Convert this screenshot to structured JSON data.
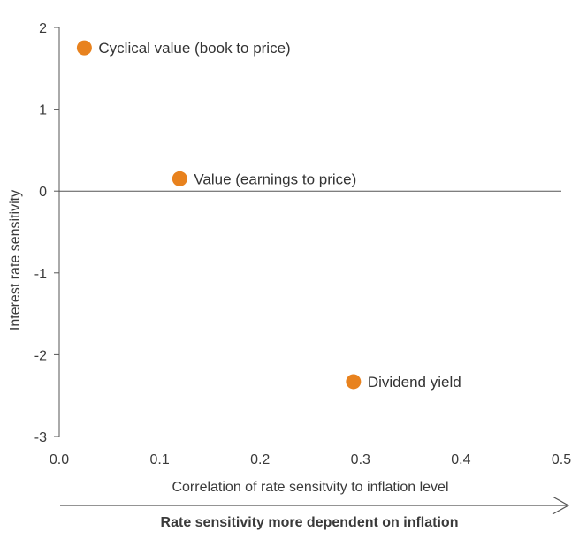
{
  "chart_data": {
    "type": "scatter",
    "xlabel": "Correlation of rate sensitvity to inflation level",
    "ylabel": "Interest rate sensitivity",
    "xlim": [
      0.0,
      0.5
    ],
    "ylim": [
      -3,
      2
    ],
    "x_ticks": [
      "0.0",
      "0.1",
      "0.2",
      "0.3",
      "0.4",
      "0.5"
    ],
    "y_ticks": [
      "2",
      "1",
      "0",
      "-1",
      "-2",
      "-3"
    ],
    "points": [
      {
        "label": "Cyclical value (book to price)",
        "x": 0.025,
        "y": 1.75
      },
      {
        "label": "Value (earnings to price)",
        "x": 0.12,
        "y": 0.15
      },
      {
        "label": "Dividend yield",
        "x": 0.293,
        "y": -2.33
      }
    ],
    "marker_color": "#e8821e",
    "grid": false,
    "annotation": "Rate sensitivity more dependent on inflation"
  }
}
